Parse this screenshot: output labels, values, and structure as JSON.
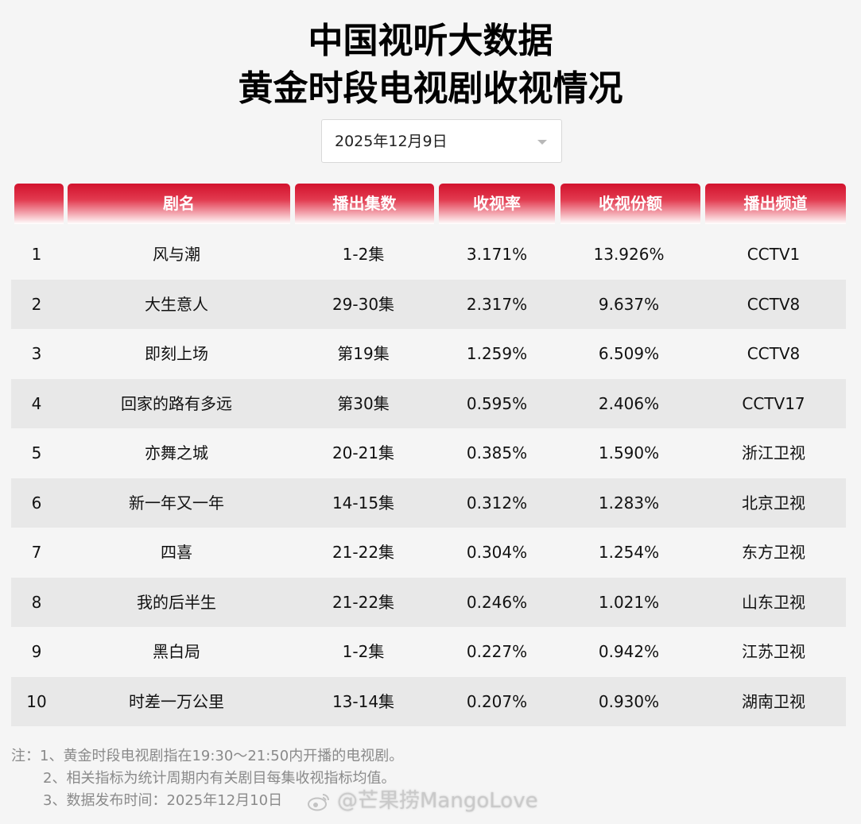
{
  "title_line1": "中国视听大数据",
  "title_line2": "黄金时段电视剧收视情况",
  "date_select": {
    "value": "2025年12月9日"
  },
  "table": {
    "headers": [
      "",
      "剧名",
      "播出集数",
      "收视率",
      "收视份额",
      "播出频道"
    ],
    "rows": [
      [
        "1",
        "风与潮",
        "1-2集",
        "3.171%",
        "13.926%",
        "CCTV1"
      ],
      [
        "2",
        "大生意人",
        "29-30集",
        "2.317%",
        "9.637%",
        "CCTV8"
      ],
      [
        "3",
        "即刻上场",
        "第19集",
        "1.259%",
        "6.509%",
        "CCTV8"
      ],
      [
        "4",
        "回家的路有多远",
        "第30集",
        "0.595%",
        "2.406%",
        "CCTV17"
      ],
      [
        "5",
        "亦舞之城",
        "20-21集",
        "0.385%",
        "1.590%",
        "浙江卫视"
      ],
      [
        "6",
        "新一年又一年",
        "14-15集",
        "0.312%",
        "1.283%",
        "北京卫视"
      ],
      [
        "7",
        "四喜",
        "21-22集",
        "0.304%",
        "1.254%",
        "东方卫视"
      ],
      [
        "8",
        "我的后半生",
        "21-22集",
        "0.246%",
        "1.021%",
        "山东卫视"
      ],
      [
        "9",
        "黑白局",
        "1-2集",
        "0.227%",
        "0.942%",
        "江苏卫视"
      ],
      [
        "10",
        "时差一万公里",
        "13-14集",
        "0.207%",
        "0.930%",
        "湖南卫视"
      ]
    ]
  },
  "notes": [
    "注：1、黄金时段电视剧指在19:30～21:50内开播的电视剧。",
    "2、相关指标为统计周期内有关剧目每集收视指标均值。",
    "3、数据发布时间：2025年12月10日"
  ],
  "watermark": "@芒果捞MangoLove",
  "colors": {
    "header_red": "#d2122d",
    "row_alt": "#e8e8e8",
    "background": "#f5f5f5",
    "note_gray": "#8a8a8a"
  },
  "icons": {
    "watermark_logo": "weibo-icon",
    "dropdown": "chevron-down-icon"
  }
}
